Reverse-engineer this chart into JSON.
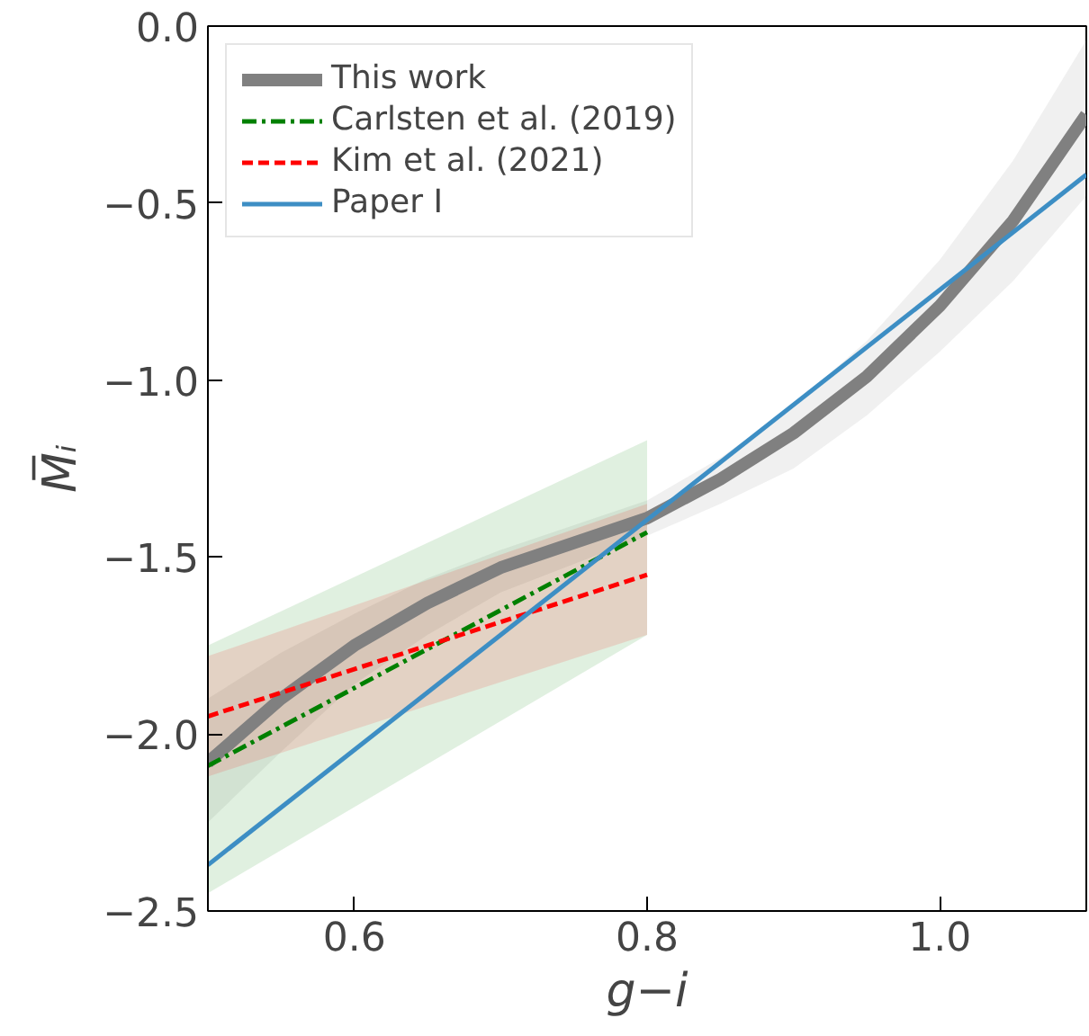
{
  "chart_data": {
    "type": "line",
    "xlabel": "g−i",
    "ylabel": "M̅ᵢ",
    "xlim": [
      0.5,
      1.1
    ],
    "ylim": [
      -2.5,
      0.0
    ],
    "xticks": [
      0.6,
      0.8,
      {
        "value": 1.0,
        "label": "1.0"
      }
    ],
    "yticks": [
      {
        "value": -2.5,
        "label": "−2.5"
      },
      {
        "value": -2.0,
        "label": "−2.0"
      },
      {
        "value": -1.5,
        "label": "−1.5"
      },
      {
        "value": -1.0,
        "label": "−1.0"
      },
      {
        "value": -0.5,
        "label": "−0.5"
      },
      {
        "value": 0.0,
        "label": "0.0"
      }
    ],
    "grid": false,
    "legend": "top left",
    "series": [
      {
        "name": "This work",
        "color": "#808080",
        "line_style": "solid",
        "x": [
          0.5,
          0.55,
          0.6,
          0.65,
          0.7,
          0.75,
          0.8,
          0.85,
          0.9,
          0.95,
          1.0,
          1.05,
          1.1
        ],
        "values": [
          -2.08,
          -1.9,
          -1.75,
          -1.63,
          -1.53,
          -1.46,
          -1.39,
          -1.28,
          -1.15,
          -0.99,
          -0.79,
          -0.55,
          -0.25
        ],
        "upper": [
          -1.9,
          -1.77,
          -1.66,
          -1.56,
          -1.48,
          -1.41,
          -1.34,
          -1.22,
          -1.07,
          -0.89,
          -0.66,
          -0.38,
          -0.04
        ],
        "lower": [
          -2.25,
          -2.05,
          -1.86,
          -1.72,
          -1.6,
          -1.52,
          -1.44,
          -1.35,
          -1.25,
          -1.1,
          -0.92,
          -0.72,
          -0.48
        ]
      },
      {
        "name": "Carlsten et al. (2019)",
        "color": "#008000",
        "line_style": "dashdot",
        "x": [
          0.5,
          0.8
        ],
        "values": [
          -2.09,
          -1.43
        ],
        "upper": [
          -1.75,
          -1.17
        ],
        "lower": [
          -2.45,
          -1.72
        ]
      },
      {
        "name": "Kim et al. (2021)",
        "color": "#ff0000",
        "line_style": "dashed",
        "x": [
          0.5,
          0.8
        ],
        "values": [
          -1.95,
          -1.55
        ],
        "upper": [
          -1.78,
          -1.35
        ],
        "lower": [
          -2.12,
          -1.72
        ]
      },
      {
        "name": "Paper I",
        "color": "#3d8ec4",
        "line_style": "solid",
        "x": [
          0.5,
          1.1
        ],
        "values": [
          -2.37,
          -0.42
        ]
      }
    ]
  }
}
